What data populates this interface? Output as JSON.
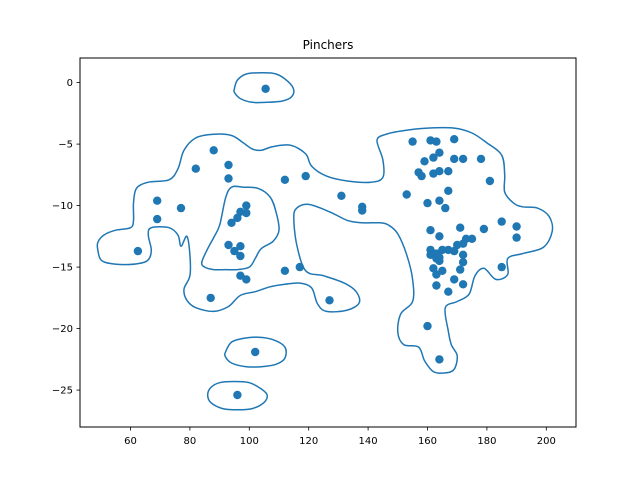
{
  "chart_data": {
    "type": "scatter",
    "title": "Pinchers",
    "xlabel": "",
    "ylabel": "",
    "xlim": [
      43,
      210
    ],
    "ylim": [
      -28,
      2
    ],
    "x_ticks": [
      60,
      80,
      100,
      120,
      140,
      160,
      180,
      200
    ],
    "y_ticks": [
      0,
      -5,
      -10,
      -15,
      -20,
      -25
    ],
    "grid": false,
    "color": "#1f77b4",
    "points": [
      [
        105.5,
        -0.5
      ],
      [
        88,
        -5.5
      ],
      [
        82,
        -7
      ],
      [
        93,
        -6.7
      ],
      [
        93,
        -7.8
      ],
      [
        69,
        -9.6
      ],
      [
        69,
        -11.1
      ],
      [
        77,
        -10.2
      ],
      [
        62.5,
        -13.7
      ],
      [
        99,
        -10
      ],
      [
        97,
        -10.5
      ],
      [
        99,
        -10.6
      ],
      [
        96,
        -11
      ],
      [
        94,
        -11.4
      ],
      [
        93,
        -13.2
      ],
      [
        95,
        -13.7
      ],
      [
        97,
        -13.3
      ],
      [
        97,
        -14.1
      ],
      [
        97,
        -15.7
      ],
      [
        99,
        -16
      ],
      [
        87,
        -17.5
      ],
      [
        112,
        -7.9
      ],
      [
        119,
        -7.6
      ],
      [
        112,
        -15.3
      ],
      [
        117,
        -15
      ],
      [
        131,
        -9.2
      ],
      [
        138,
        -10.1
      ],
      [
        138,
        -10.4
      ],
      [
        127,
        -17.7
      ],
      [
        102,
        -21.9
      ],
      [
        96,
        -25.4
      ],
      [
        155,
        -4.8
      ],
      [
        161,
        -4.7
      ],
      [
        163,
        -4.8
      ],
      [
        169,
        -4.6
      ],
      [
        164,
        -5.7
      ],
      [
        159,
        -6.4
      ],
      [
        162,
        -6.1
      ],
      [
        169,
        -6.2
      ],
      [
        172,
        -6.2
      ],
      [
        178,
        -6.2
      ],
      [
        157,
        -7.3
      ],
      [
        158,
        -7.6
      ],
      [
        162,
        -7.4
      ],
      [
        164,
        -7.2
      ],
      [
        167,
        -7.2
      ],
      [
        181,
        -8
      ],
      [
        167,
        -8.8
      ],
      [
        153,
        -9.1
      ],
      [
        160,
        -9.8
      ],
      [
        164,
        -9.6
      ],
      [
        166,
        -10.2
      ],
      [
        161,
        -12
      ],
      [
        164,
        -12.5
      ],
      [
        171,
        -11.8
      ],
      [
        179,
        -11.9
      ],
      [
        185,
        -11.3
      ],
      [
        190,
        -11.7
      ],
      [
        190,
        -12.6
      ],
      [
        161,
        -13.6
      ],
      [
        163,
        -13.9
      ],
      [
        165,
        -13.6
      ],
      [
        167,
        -13.6
      ],
      [
        169,
        -13.7
      ],
      [
        170,
        -13.2
      ],
      [
        172,
        -13.1
      ],
      [
        173,
        -12.7
      ],
      [
        175,
        -12.7
      ],
      [
        161,
        -14
      ],
      [
        163,
        -14.3
      ],
      [
        164,
        -14.2
      ],
      [
        164,
        -14.5
      ],
      [
        172,
        -14
      ],
      [
        172,
        -14.6
      ],
      [
        171,
        -15.2
      ],
      [
        162,
        -15.1
      ],
      [
        163,
        -15.6
      ],
      [
        165,
        -15.3
      ],
      [
        169,
        -16
      ],
      [
        172,
        -16.4
      ],
      [
        163,
        -16.5
      ],
      [
        167,
        -17
      ],
      [
        185,
        -15
      ],
      [
        160,
        -19.8
      ],
      [
        164,
        -22.5
      ]
    ],
    "contours": [
      [
        [
          95,
          -0.5
        ],
        [
          96,
          0.2
        ],
        [
          99,
          0.7
        ],
        [
          104,
          0.8
        ],
        [
          109,
          0.7
        ],
        [
          113,
          0.1
        ],
        [
          115,
          -0.6
        ],
        [
          114,
          -1.2
        ],
        [
          111,
          -1.5
        ],
        [
          106,
          -1.6
        ],
        [
          101,
          -1.6
        ],
        [
          97,
          -1.3
        ],
        [
          95,
          -0.8
        ]
      ],
      [
        [
          49,
          -13.6
        ],
        [
          50,
          -14.4
        ],
        [
          53,
          -14.7
        ],
        [
          58,
          -14.8
        ],
        [
          63,
          -14.7
        ],
        [
          66,
          -14.4
        ],
        [
          67,
          -13.6
        ],
        [
          66,
          -12.4
        ],
        [
          67,
          -11.8
        ],
        [
          73,
          -11.8
        ],
        [
          76,
          -12.4
        ],
        [
          77,
          -13.3
        ],
        [
          79,
          -12.5
        ],
        [
          80,
          -14
        ],
        [
          80,
          -15.7
        ],
        [
          78,
          -16.8
        ],
        [
          79,
          -17.7
        ],
        [
          82,
          -18.3
        ],
        [
          88,
          -18.6
        ],
        [
          93,
          -18.2
        ],
        [
          97,
          -17.3
        ],
        [
          102,
          -17
        ],
        [
          107,
          -16.6
        ],
        [
          112,
          -16.4
        ],
        [
          117,
          -16.3
        ],
        [
          121,
          -16.7
        ],
        [
          123,
          -18
        ],
        [
          126,
          -18.6
        ],
        [
          133,
          -18.5
        ],
        [
          137,
          -17.9
        ],
        [
          136,
          -17
        ],
        [
          132,
          -16.3
        ],
        [
          125,
          -15.7
        ],
        [
          119,
          -15.3
        ],
        [
          116,
          -13.2
        ],
        [
          115,
          -11
        ],
        [
          116,
          -10.2
        ],
        [
          120,
          -9.9
        ],
        [
          127,
          -10.5
        ],
        [
          133,
          -11.2
        ],
        [
          138,
          -11.4
        ],
        [
          144,
          -11.4
        ],
        [
          147,
          -11.6
        ],
        [
          150,
          -12.3
        ],
        [
          153,
          -14
        ],
        [
          155,
          -16
        ],
        [
          155,
          -17.8
        ],
        [
          151,
          -18.8
        ],
        [
          150,
          -20.3
        ],
        [
          152,
          -21.3
        ],
        [
          157,
          -21.5
        ],
        [
          159,
          -22.6
        ],
        [
          162,
          -23.5
        ],
        [
          166,
          -23.6
        ],
        [
          169,
          -23.3
        ],
        [
          170,
          -22.2
        ],
        [
          168,
          -21.3
        ],
        [
          167,
          -20.2
        ],
        [
          166,
          -18.3
        ],
        [
          170,
          -17.8
        ],
        [
          174,
          -17.2
        ],
        [
          176,
          -15.7
        ],
        [
          179,
          -15.1
        ],
        [
          183,
          -16
        ],
        [
          187,
          -15.6
        ],
        [
          187,
          -14.3
        ],
        [
          192,
          -13.9
        ],
        [
          199,
          -13.4
        ],
        [
          202,
          -12.1
        ],
        [
          201,
          -10.9
        ],
        [
          197,
          -10.2
        ],
        [
          192,
          -10.1
        ],
        [
          189,
          -9.8
        ],
        [
          186,
          -8.9
        ],
        [
          186,
          -7.5
        ],
        [
          185,
          -5.9
        ],
        [
          180,
          -4.9
        ],
        [
          175,
          -4.1
        ],
        [
          169,
          -3.7
        ],
        [
          160,
          -3.7
        ],
        [
          152,
          -3.9
        ],
        [
          146,
          -4.2
        ],
        [
          143,
          -4.7
        ],
        [
          145,
          -6.3
        ],
        [
          145,
          -7.7
        ],
        [
          141,
          -8.1
        ],
        [
          133,
          -8
        ],
        [
          126,
          -7.6
        ],
        [
          121,
          -6.8
        ],
        [
          119,
          -5.8
        ],
        [
          114,
          -5.1
        ],
        [
          108,
          -5.2
        ],
        [
          104,
          -5.5
        ],
        [
          101,
          -5.4
        ],
        [
          98,
          -4.9
        ],
        [
          94,
          -4.3
        ],
        [
          88,
          -4.2
        ],
        [
          82,
          -4.5
        ],
        [
          78,
          -5.5
        ],
        [
          76,
          -7
        ],
        [
          73,
          -7.9
        ],
        [
          66,
          -8.1
        ],
        [
          62,
          -8.6
        ],
        [
          61,
          -9.8
        ],
        [
          61,
          -11.2
        ],
        [
          60,
          -11.8
        ],
        [
          55,
          -12
        ],
        [
          51,
          -12.4
        ],
        [
          49,
          -13
        ]
      ],
      [
        [
          84,
          -14.6
        ],
        [
          86,
          -13.5
        ],
        [
          88,
          -12.6
        ],
        [
          90,
          -11.6
        ],
        [
          92,
          -9.4
        ],
        [
          94,
          -8.5
        ],
        [
          98,
          -8.5
        ],
        [
          103,
          -8.6
        ],
        [
          107,
          -9.3
        ],
        [
          109,
          -10.5
        ],
        [
          110,
          -12
        ],
        [
          108,
          -12.9
        ],
        [
          104,
          -13.5
        ],
        [
          102,
          -14.3
        ],
        [
          100,
          -15
        ],
        [
          96,
          -15.2
        ],
        [
          92,
          -15.2
        ],
        [
          88,
          -15.2
        ],
        [
          85,
          -15
        ]
      ],
      [
        [
          92,
          -21.9
        ],
        [
          94,
          -21.1
        ],
        [
          98,
          -20.8
        ],
        [
          103,
          -20.7
        ],
        [
          108,
          -20.9
        ],
        [
          112,
          -21.5
        ],
        [
          112,
          -22.4
        ],
        [
          109,
          -22.9
        ],
        [
          104,
          -23.1
        ],
        [
          99,
          -23.1
        ],
        [
          94,
          -22.8
        ],
        [
          92,
          -22.3
        ]
      ],
      [
        [
          86,
          -25.4
        ],
        [
          87,
          -24.8
        ],
        [
          90,
          -24.4
        ],
        [
          95,
          -24.3
        ],
        [
          100,
          -24.4
        ],
        [
          104,
          -24.9
        ],
        [
          106,
          -25.4
        ],
        [
          105,
          -26
        ],
        [
          101,
          -26.5
        ],
        [
          96,
          -26.6
        ],
        [
          91,
          -26.5
        ],
        [
          87,
          -26
        ]
      ]
    ]
  }
}
